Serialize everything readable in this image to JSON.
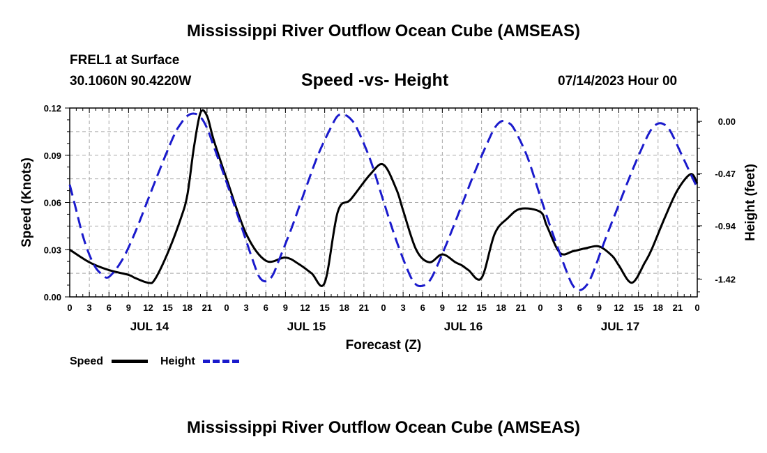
{
  "header": {
    "title": "Mississippi River Outflow Ocean Cube (AMSEAS)",
    "station": "FREL1 at Surface",
    "coords": "30.1060N  90.4220W",
    "date": "07/14/2023 Hour 00"
  },
  "footer": {
    "title": "Mississippi River Outflow Ocean Cube (AMSEAS)"
  },
  "chart_data": {
    "type": "line",
    "title": "Speed -vs- Height",
    "xlabel": "Forecast (Z)",
    "ylabel": "Speed (Knots)",
    "y2label": "Height (feet)",
    "x_tick_labels": [
      "0",
      "3",
      "6",
      "9",
      "12",
      "15",
      "18",
      "21",
      "0",
      "3",
      "6",
      "9",
      "12",
      "15",
      "18",
      "21",
      "0",
      "3",
      "6",
      "9",
      "12",
      "15",
      "18",
      "21",
      "0",
      "3",
      "6",
      "9",
      "12",
      "15",
      "18",
      "21",
      "0"
    ],
    "day_labels": [
      {
        "label": "JUL 14",
        "hour": 12
      },
      {
        "label": "JUL 15",
        "hour": 36
      },
      {
        "label": "JUL 16",
        "hour": 60
      },
      {
        "label": "JUL 17",
        "hour": 84
      }
    ],
    "xlim": [
      0,
      96
    ],
    "ylim": [
      0,
      0.12
    ],
    "y_ticks": [
      "0.00",
      "0.03",
      "0.06",
      "0.09",
      "0.12"
    ],
    "y2lim": [
      -1.58,
      0.12
    ],
    "y2_ticks": [
      "0.00",
      "-0.47",
      "-0.94",
      "-1.42"
    ],
    "grid": true,
    "legend": [
      {
        "name": "Speed",
        "color": "#000000",
        "style": "solid"
      },
      {
        "name": "Height",
        "color": "#1a1acc",
        "style": "dashed"
      }
    ],
    "series": [
      {
        "name": "Speed",
        "axis": "left",
        "color": "#000000",
        "x": [
          0,
          3,
          6,
          9,
          10,
          12,
          13,
          15,
          17,
          18,
          19,
          20,
          21,
          22,
          24,
          27,
          30,
          33,
          35,
          37,
          39,
          41,
          43,
          46,
          48,
          50,
          51,
          53,
          55,
          57,
          59,
          60,
          61,
          63,
          65,
          67,
          69,
          72,
          73,
          75,
          77,
          79,
          81,
          83,
          84,
          86,
          88,
          89,
          91,
          93,
          95,
          96
        ],
        "values": [
          0.03,
          0.022,
          0.017,
          0.014,
          0.012,
          0.009,
          0.011,
          0.028,
          0.05,
          0.065,
          0.095,
          0.117,
          0.115,
          0.1,
          0.075,
          0.04,
          0.023,
          0.025,
          0.021,
          0.015,
          0.009,
          0.054,
          0.062,
          0.078,
          0.084,
          0.068,
          0.055,
          0.03,
          0.022,
          0.027,
          0.022,
          0.02,
          0.017,
          0.012,
          0.04,
          0.05,
          0.056,
          0.054,
          0.045,
          0.028,
          0.029,
          0.031,
          0.032,
          0.026,
          0.02,
          0.009,
          0.022,
          0.03,
          0.05,
          0.068,
          0.078,
          0.072
        ]
      },
      {
        "name": "Height",
        "axis": "right",
        "color": "#1a1acc",
        "x": [
          0,
          1,
          2,
          3,
          4,
          5,
          6,
          8,
          10,
          12,
          14,
          16,
          17,
          18,
          19,
          20,
          21,
          22,
          24,
          26,
          28,
          29,
          30,
          31,
          32,
          34,
          36,
          38,
          40,
          41,
          42,
          43,
          44,
          46,
          48,
          50,
          52,
          53,
          54,
          55,
          56,
          58,
          60,
          62,
          64,
          65,
          66,
          67,
          68,
          70,
          72,
          74,
          76,
          77,
          78,
          79,
          80,
          82,
          84,
          86,
          88,
          89,
          90,
          91,
          92,
          94,
          96
        ],
        "values": [
          -0.57,
          -0.8,
          -1.03,
          -1.2,
          -1.32,
          -1.38,
          -1.4,
          -1.25,
          -1.0,
          -0.7,
          -0.4,
          -0.12,
          -0.02,
          0.05,
          0.07,
          0.04,
          -0.06,
          -0.22,
          -0.55,
          -0.9,
          -1.25,
          -1.4,
          -1.44,
          -1.39,
          -1.25,
          -0.95,
          -0.62,
          -0.3,
          -0.05,
          0.05,
          0.06,
          0.02,
          -0.07,
          -0.35,
          -0.72,
          -1.08,
          -1.38,
          -1.47,
          -1.48,
          -1.44,
          -1.33,
          -1.05,
          -0.75,
          -0.45,
          -0.18,
          -0.06,
          0.0,
          -0.01,
          -0.07,
          -0.32,
          -0.68,
          -1.03,
          -1.35,
          -1.48,
          -1.52,
          -1.48,
          -1.37,
          -1.05,
          -0.75,
          -0.45,
          -0.18,
          -0.07,
          -0.02,
          -0.03,
          -0.1,
          -0.35,
          -0.6
        ]
      }
    ]
  }
}
